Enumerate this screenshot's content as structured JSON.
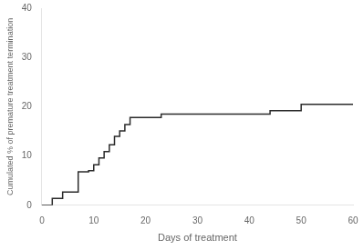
{
  "chart_data": {
    "type": "line",
    "x": [
      0,
      2,
      2,
      4,
      4,
      7,
      7,
      9,
      9,
      10,
      10,
      11,
      11,
      12,
      12,
      13,
      13,
      14,
      14,
      15,
      15,
      16,
      16,
      17,
      17,
      23,
      23,
      44,
      44,
      50,
      50,
      55,
      55,
      60
    ],
    "values": [
      0,
      0,
      1.4,
      1.4,
      2.7,
      2.7,
      6.8,
      6.8,
      7.0,
      7.0,
      8.2,
      8.2,
      9.6,
      9.6,
      10.9,
      10.9,
      12.3,
      12.3,
      14.0,
      14.0,
      15.1,
      15.1,
      16.4,
      16.4,
      17.8,
      17.8,
      18.5,
      18.5,
      19.2,
      19.2,
      20.5,
      20.5,
      20.5,
      20.5
    ],
    "color": "#2b2b2b",
    "xlim": [
      0,
      60
    ],
    "ylim": [
      0,
      40
    ],
    "xticks": [
      0,
      10,
      20,
      30,
      40,
      50,
      60
    ],
    "yticks": [
      0,
      10,
      20,
      30,
      40
    ],
    "xlabel": "Days of treatment",
    "ylabel": "Cumulated % of premature treatment termination",
    "grid": false
  }
}
